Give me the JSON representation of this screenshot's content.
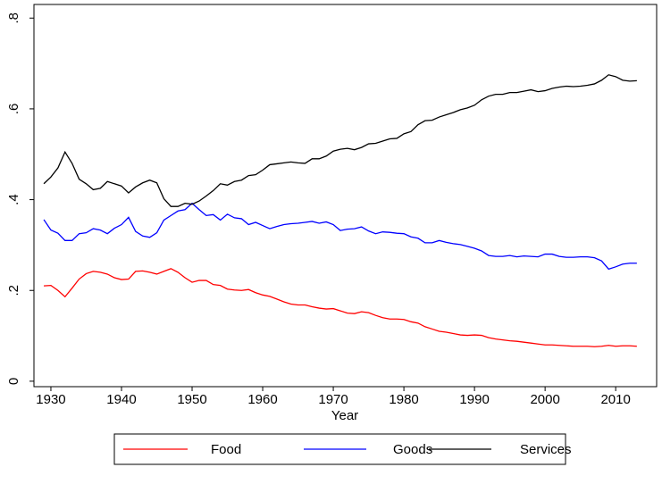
{
  "chart_data": {
    "type": "line",
    "x_label": "Year",
    "legend": "bottom",
    "x": [
      1929,
      1930,
      1931,
      1932,
      1933,
      1934,
      1935,
      1936,
      1937,
      1938,
      1939,
      1940,
      1941,
      1942,
      1943,
      1944,
      1945,
      1946,
      1947,
      1948,
      1949,
      1950,
      1951,
      1952,
      1953,
      1954,
      1955,
      1956,
      1957,
      1958,
      1959,
      1960,
      1961,
      1962,
      1963,
      1964,
      1965,
      1966,
      1967,
      1968,
      1969,
      1970,
      1971,
      1972,
      1973,
      1974,
      1975,
      1976,
      1977,
      1978,
      1979,
      1980,
      1981,
      1982,
      1983,
      1984,
      1985,
      1986,
      1987,
      1988,
      1989,
      1990,
      1991,
      1992,
      1993,
      1994,
      1995,
      1996,
      1997,
      1998,
      1999,
      2000,
      2001,
      2002,
      2003,
      2004,
      2005,
      2006,
      2007,
      2008,
      2009,
      2010,
      2011,
      2012,
      2013
    ],
    "series": [
      {
        "name": "Food",
        "color": "#ff0000",
        "values": [
          0.21,
          0.211,
          0.2,
          0.186,
          0.205,
          0.225,
          0.237,
          0.242,
          0.24,
          0.236,
          0.228,
          0.224,
          0.225,
          0.242,
          0.243,
          0.24,
          0.236,
          0.242,
          0.248,
          0.24,
          0.228,
          0.218,
          0.222,
          0.222,
          0.213,
          0.211,
          0.203,
          0.201,
          0.2,
          0.202,
          0.195,
          0.19,
          0.187,
          0.181,
          0.175,
          0.17,
          0.168,
          0.168,
          0.164,
          0.161,
          0.159,
          0.16,
          0.155,
          0.15,
          0.149,
          0.153,
          0.151,
          0.145,
          0.14,
          0.137,
          0.137,
          0.136,
          0.131,
          0.128,
          0.12,
          0.115,
          0.11,
          0.108,
          0.105,
          0.102,
          0.101,
          0.102,
          0.101,
          0.096,
          0.093,
          0.091,
          0.089,
          0.088,
          0.086,
          0.084,
          0.082,
          0.08,
          0.08,
          0.079,
          0.078,
          0.077,
          0.077,
          0.077,
          0.076,
          0.077,
          0.079,
          0.077,
          0.078,
          0.078,
          0.077
        ]
      },
      {
        "name": "Goods",
        "color": "#0000ff",
        "values": [
          0.356,
          0.333,
          0.326,
          0.31,
          0.31,
          0.325,
          0.327,
          0.336,
          0.333,
          0.325,
          0.337,
          0.345,
          0.361,
          0.33,
          0.32,
          0.317,
          0.327,
          0.355,
          0.365,
          0.375,
          0.378,
          0.392,
          0.378,
          0.365,
          0.367,
          0.355,
          0.368,
          0.36,
          0.358,
          0.345,
          0.35,
          0.343,
          0.336,
          0.341,
          0.345,
          0.347,
          0.348,
          0.35,
          0.352,
          0.348,
          0.351,
          0.345,
          0.332,
          0.335,
          0.336,
          0.34,
          0.331,
          0.325,
          0.329,
          0.328,
          0.326,
          0.325,
          0.318,
          0.315,
          0.305,
          0.305,
          0.31,
          0.306,
          0.303,
          0.301,
          0.297,
          0.293,
          0.287,
          0.277,
          0.275,
          0.275,
          0.277,
          0.274,
          0.276,
          0.275,
          0.274,
          0.28,
          0.28,
          0.275,
          0.273,
          0.273,
          0.274,
          0.274,
          0.272,
          0.265,
          0.247,
          0.252,
          0.258,
          0.26,
          0.26
        ]
      },
      {
        "name": "Services",
        "color": "#000000",
        "values": [
          0.435,
          0.45,
          0.47,
          0.505,
          0.48,
          0.445,
          0.435,
          0.422,
          0.425,
          0.44,
          0.435,
          0.43,
          0.415,
          0.428,
          0.437,
          0.443,
          0.437,
          0.402,
          0.385,
          0.385,
          0.392,
          0.39,
          0.397,
          0.408,
          0.42,
          0.435,
          0.432,
          0.44,
          0.443,
          0.453,
          0.455,
          0.465,
          0.477,
          0.479,
          0.481,
          0.483,
          0.481,
          0.48,
          0.49,
          0.49,
          0.496,
          0.507,
          0.511,
          0.513,
          0.51,
          0.515,
          0.523,
          0.524,
          0.529,
          0.534,
          0.535,
          0.545,
          0.55,
          0.565,
          0.574,
          0.575,
          0.582,
          0.587,
          0.592,
          0.598,
          0.602,
          0.608,
          0.62,
          0.628,
          0.632,
          0.632,
          0.636,
          0.636,
          0.639,
          0.642,
          0.638,
          0.64,
          0.645,
          0.648,
          0.65,
          0.649,
          0.65,
          0.652,
          0.655,
          0.663,
          0.675,
          0.671,
          0.663,
          0.661,
          0.662
        ]
      }
    ],
    "xlim": [
      1927.6,
      2015.8
    ],
    "xticks": [
      1930,
      1940,
      1950,
      1960,
      1970,
      1980,
      1990,
      2000,
      2010
    ],
    "ylim": [
      -0.012,
      0.83
    ],
    "yticks": [
      0,
      {
        "value": 0.2,
        "label": ".2"
      },
      {
        "value": 0.4,
        "label": ".4"
      },
      {
        "value": 0.6,
        "label": ".6"
      },
      {
        "value": 0.8,
        "label": ".8"
      }
    ],
    "grid": false
  }
}
